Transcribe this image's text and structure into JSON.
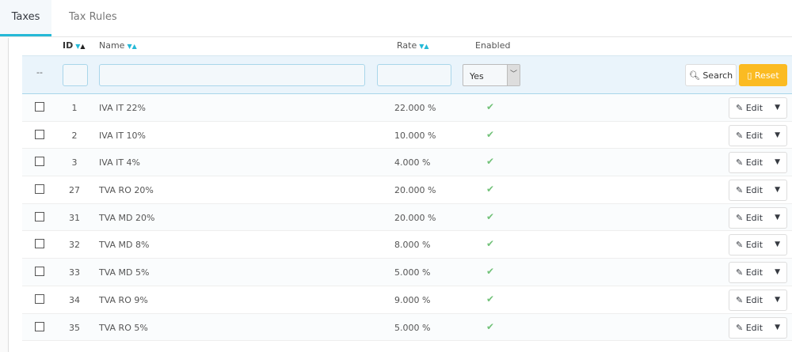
{
  "tabs": [
    {
      "label": "Taxes",
      "active": true
    },
    {
      "label": "Tax Rules",
      "active": false
    }
  ],
  "columns": {
    "id": "ID",
    "name": "Name",
    "rate": "Rate",
    "enabled": "Enabled"
  },
  "filters": {
    "bulk": "--",
    "id": "",
    "name": "",
    "rate": "",
    "enabled": "Yes",
    "search_label": "Search",
    "reset_label": "Reset"
  },
  "colors": {
    "accent": "#25b9d7",
    "reset": "#fbbb22",
    "check": "#72c279"
  },
  "rows": [
    {
      "id": "1",
      "name": "IVA IT 22%",
      "rate": "22.000 %",
      "enabled": true
    },
    {
      "id": "2",
      "name": "IVA IT 10%",
      "rate": "10.000 %",
      "enabled": true
    },
    {
      "id": "3",
      "name": "IVA IT 4%",
      "rate": "4.000 %",
      "enabled": true
    },
    {
      "id": "27",
      "name": "TVA RO 20%",
      "rate": "20.000 %",
      "enabled": true
    },
    {
      "id": "31",
      "name": "TVA MD 20%",
      "rate": "20.000 %",
      "enabled": true
    },
    {
      "id": "32",
      "name": "TVA MD 8%",
      "rate": "8.000 %",
      "enabled": true
    },
    {
      "id": "33",
      "name": "TVA MD 5%",
      "rate": "5.000 %",
      "enabled": true
    },
    {
      "id": "34",
      "name": "TVA RO 9%",
      "rate": "9.000 %",
      "enabled": true
    },
    {
      "id": "35",
      "name": "TVA RO 5%",
      "rate": "5.000 %",
      "enabled": true
    }
  ],
  "row_action": "Edit"
}
